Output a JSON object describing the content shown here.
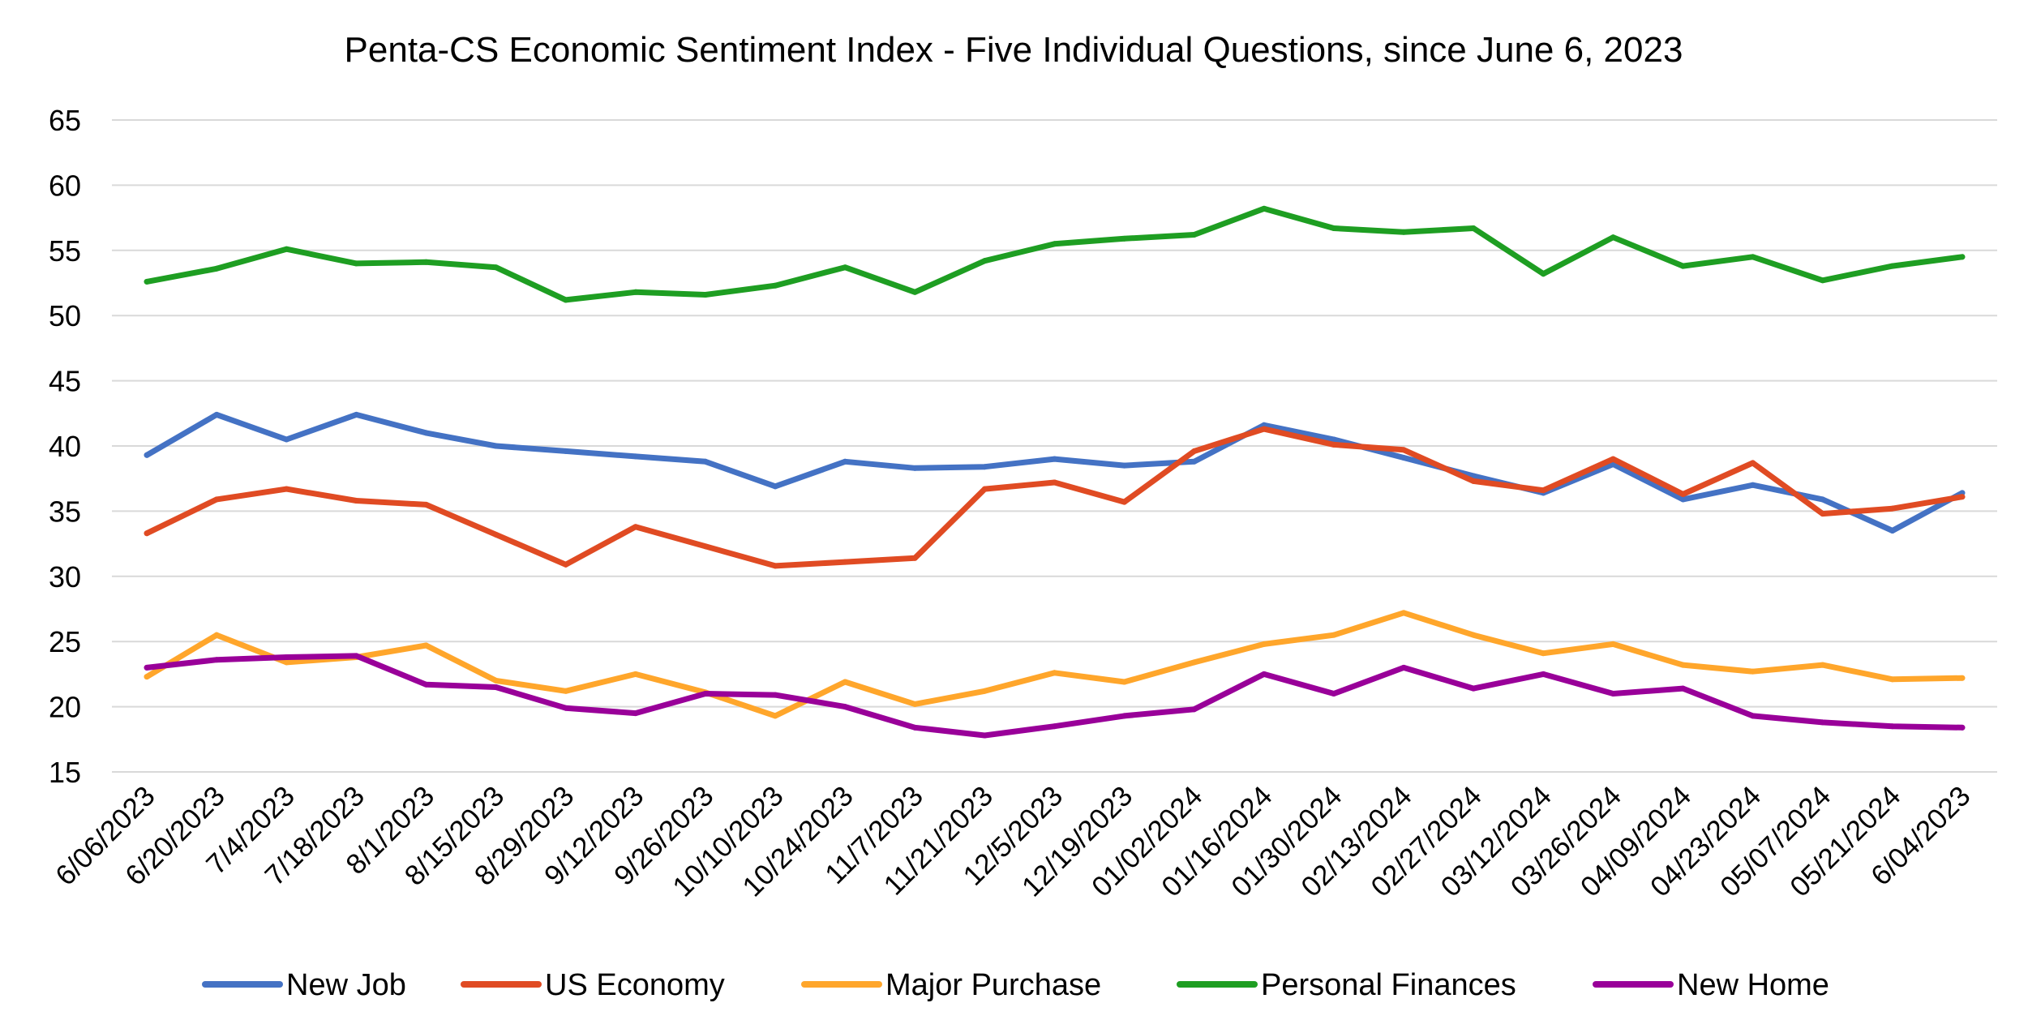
{
  "chart_data": {
    "type": "line",
    "title": "Penta-CS Economic Sentiment Index - Five Individual Questions, since June 6, 2023",
    "xlabel": "",
    "ylabel": "",
    "ylim": [
      15,
      65
    ],
    "yticks": [
      15,
      20,
      25,
      30,
      35,
      40,
      45,
      50,
      55,
      60,
      65
    ],
    "grid": true,
    "legend_position": "bottom",
    "categories": [
      "6/06/2023",
      "6/20/2023",
      "7/4/2023",
      "7/18/2023",
      "8/1/2023",
      "8/15/2023",
      "8/29/2023",
      "9/12/2023",
      "9/26/2023",
      "10/10/2023",
      "10/24/2023",
      "11/7/2023",
      "11/21/2023",
      "12/5/2023",
      "12/19/2023",
      "01/02/2024",
      "01/16/2024",
      "01/30/2024",
      "02/13/2024",
      "02/27/2024",
      "03/12/2024",
      "03/26/2024",
      "04/09/2024",
      "04/23/2024",
      "05/07/2024",
      "05/21/2024",
      "6/04/2023"
    ],
    "series": [
      {
        "name": "New Job",
        "color": "#4472C4",
        "values": [
          39.3,
          42.4,
          40.5,
          42.4,
          41.0,
          40.0,
          39.6,
          39.2,
          38.8,
          36.9,
          38.8,
          38.3,
          38.4,
          39.0,
          38.5,
          38.8,
          41.6,
          40.5,
          39.1,
          37.7,
          36.4,
          38.6,
          35.9,
          37.0,
          35.9,
          33.5,
          36.4
        ]
      },
      {
        "name": "US Economy",
        "color": "#E04B23",
        "values": [
          33.3,
          35.9,
          36.7,
          35.8,
          35.5,
          33.2,
          30.9,
          33.8,
          32.3,
          30.8,
          31.1,
          31.4,
          36.7,
          37.2,
          35.7,
          39.6,
          41.3,
          40.1,
          39.7,
          37.3,
          36.6,
          39.0,
          36.3,
          38.7,
          34.8,
          35.2,
          36.1
        ]
      },
      {
        "name": "Major Purchase",
        "color": "#FFA62B",
        "values": [
          22.3,
          25.5,
          23.4,
          23.8,
          24.7,
          22.0,
          21.2,
          22.5,
          21.1,
          19.3,
          21.9,
          20.2,
          21.2,
          22.6,
          21.9,
          23.4,
          24.8,
          25.5,
          27.2,
          25.5,
          24.1,
          24.8,
          23.2,
          22.7,
          23.2,
          22.1,
          22.2
        ]
      },
      {
        "name": "Personal Finances",
        "color": "#1E9E22",
        "values": [
          52.6,
          53.6,
          55.1,
          54.0,
          54.1,
          53.7,
          51.2,
          51.8,
          51.6,
          52.3,
          53.7,
          51.8,
          54.2,
          55.5,
          55.9,
          56.2,
          58.2,
          56.7,
          56.4,
          56.7,
          53.2,
          56.0,
          53.8,
          54.5,
          52.7,
          53.8,
          54.5
        ]
      },
      {
        "name": "New Home",
        "color": "#990099",
        "values": [
          23.0,
          23.6,
          23.8,
          23.9,
          21.7,
          21.5,
          19.9,
          19.5,
          21.0,
          20.9,
          20.0,
          18.4,
          17.8,
          18.5,
          19.3,
          19.8,
          22.5,
          21.0,
          23.0,
          21.4,
          22.5,
          21.0,
          21.4,
          19.3,
          18.8,
          18.5,
          18.4
        ]
      }
    ]
  }
}
